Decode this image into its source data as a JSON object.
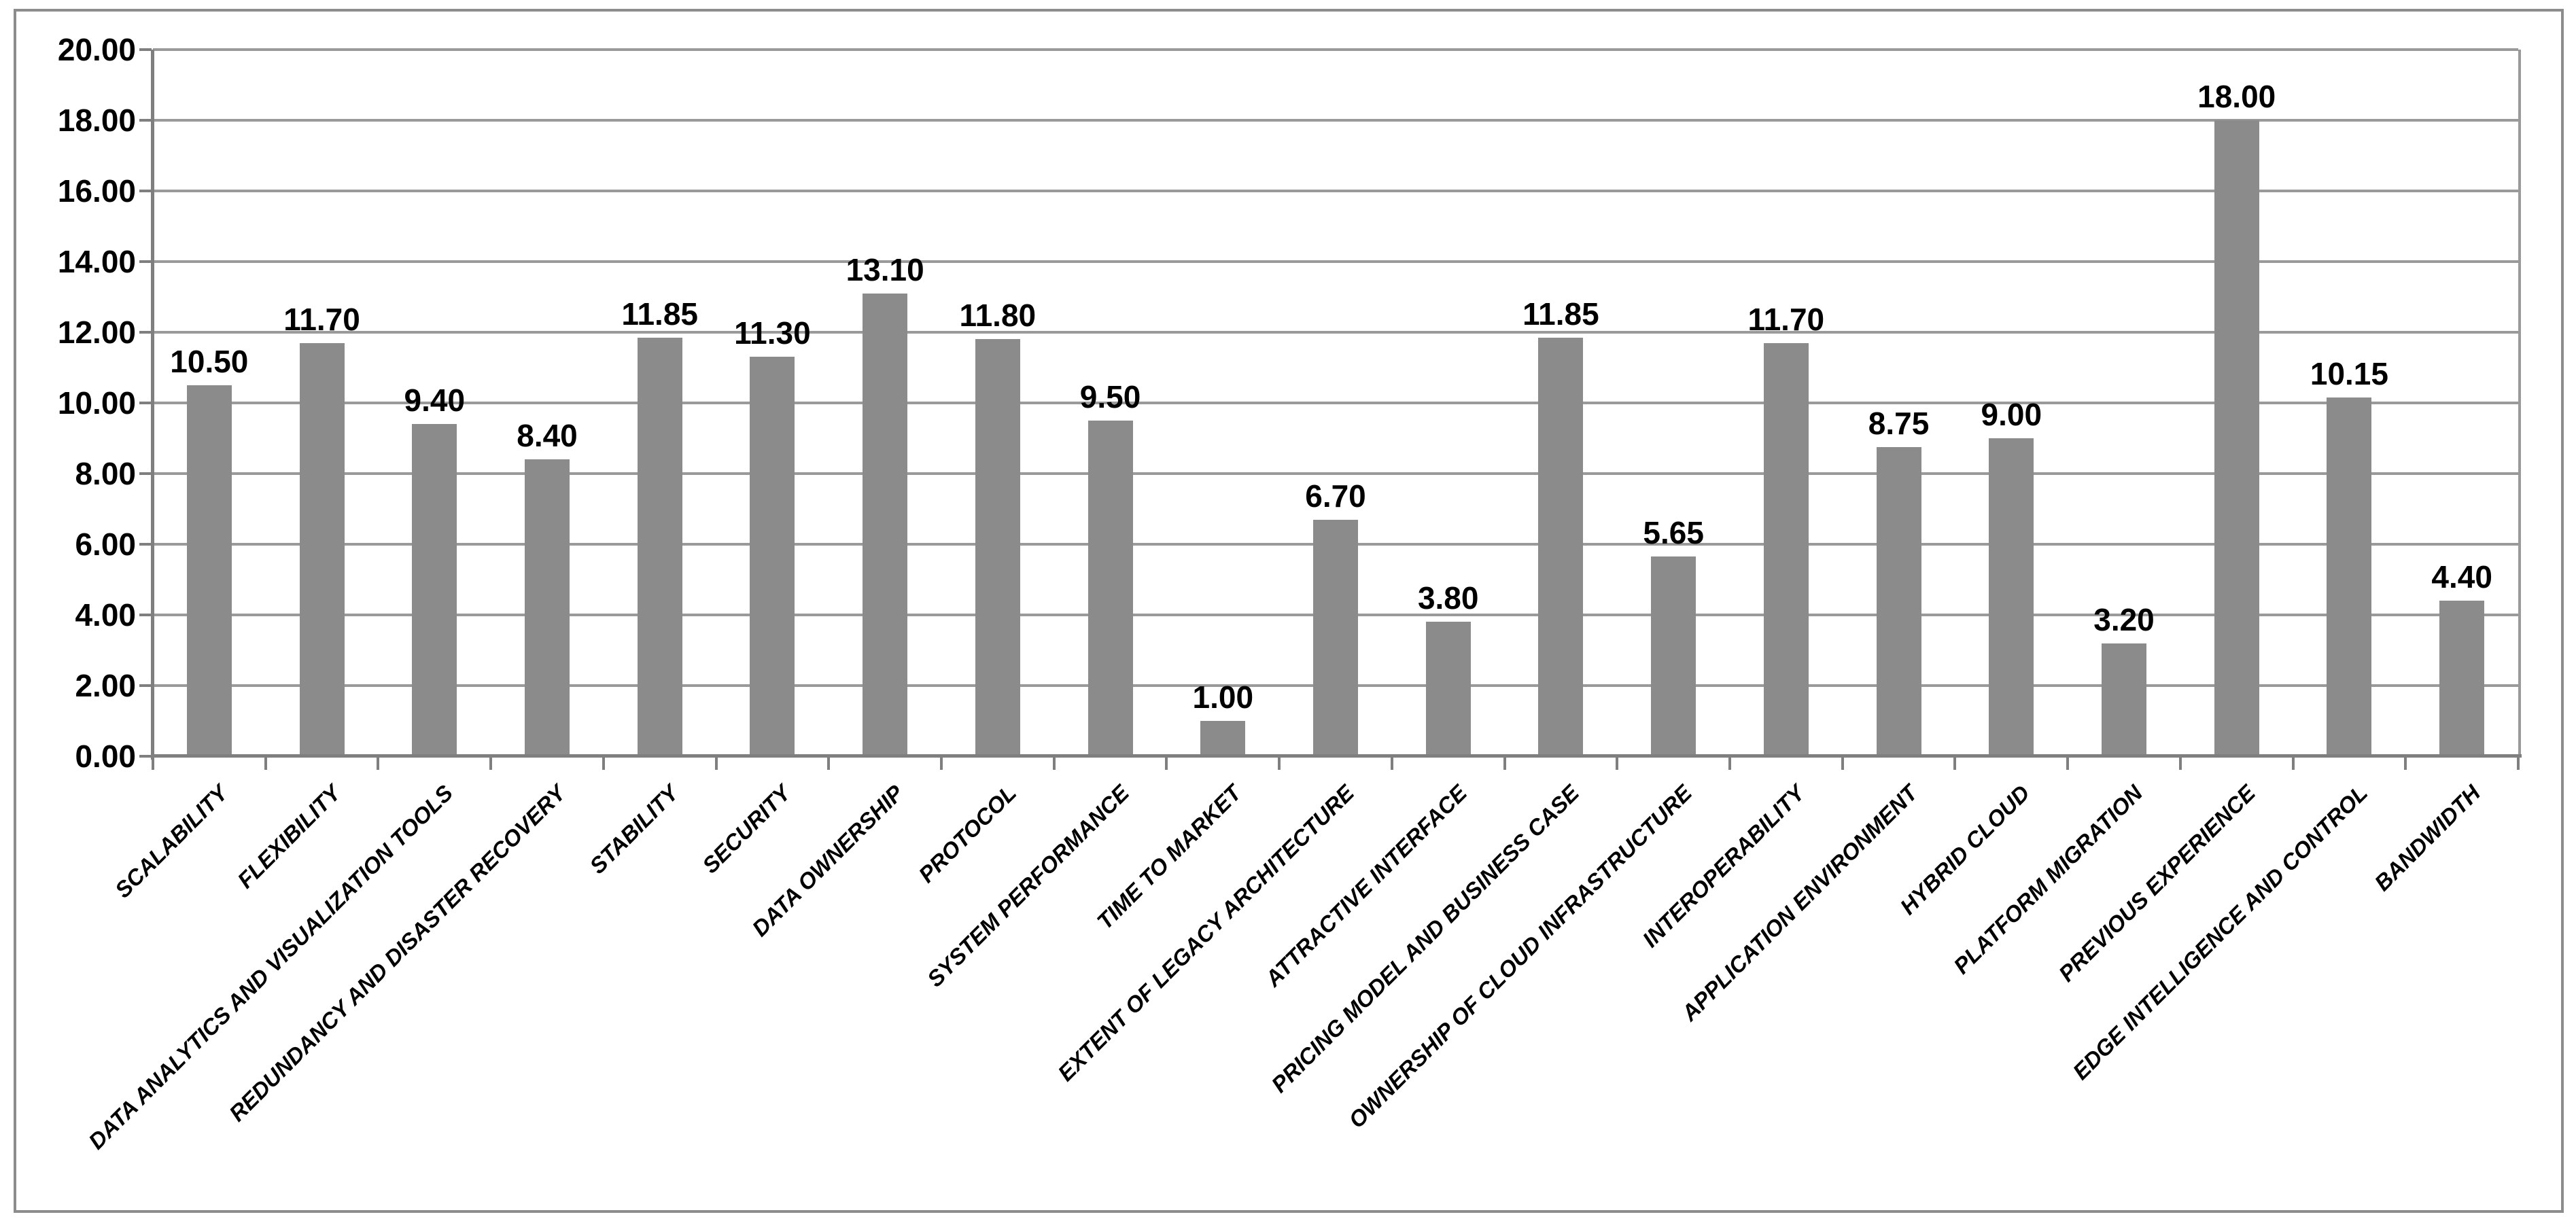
{
  "chart_data": {
    "type": "bar",
    "title": "",
    "xlabel": "",
    "ylabel": "",
    "categories": [
      "SCALABILITY",
      "FLEXIBILITY",
      "DATA ANALYTICS AND VISUALIZATION TOOLS",
      "REDUNDANCY AND DISASTER RECOVERY",
      "STABILITY",
      "SECURITY",
      "DATA OWNERSHIP",
      "PROTOCOL",
      "SYSTEM PERFORMANCE",
      "TIME TO MARKET",
      "EXTENT OF LEGACY ARCHITECTURE",
      "ATTRACTIVE INTERFACE",
      "PRICING MODEL AND BUSINESS CASE",
      "OWNERSHIP OF CLOUD INFRASTRUCTURE",
      "INTEROPERABILITY",
      "APPLICATION ENVIRONMENT",
      "HYBRID CLOUD",
      "PLATFORM MIGRATION",
      "PREVIOUS EXPERIENCE",
      "EDGE INTELLIGENCE AND CONTROL",
      "BANDWIDTH"
    ],
    "values": [
      10.5,
      11.7,
      9.4,
      8.4,
      11.85,
      11.3,
      13.1,
      11.8,
      9.5,
      1.0,
      6.7,
      3.8,
      11.85,
      5.65,
      11.7,
      8.75,
      9.0,
      3.2,
      18.0,
      10.15,
      4.4
    ],
    "value_labels": [
      "10.50",
      "11.70",
      "9.40",
      "8.40",
      "11.85",
      "11.30",
      "13.10",
      "11.80",
      "9.50",
      "1.00",
      "6.70",
      "3.80",
      "11.85",
      "5.65",
      "11.70",
      "8.75",
      "9.00",
      "3.20",
      "18.00",
      "10.15",
      "4.40"
    ],
    "y_tick_labels": [
      "20.00",
      "18.00",
      "16.00",
      "14.00",
      "12.00",
      "10.00",
      "8.00",
      "6.00",
      "4.00",
      "2.00",
      "0.00"
    ],
    "ylim": [
      0,
      20
    ],
    "y_tick_step": 2,
    "grid": "horizontal",
    "legend": "none",
    "bar_color": "#8b8b8b",
    "gridline_color": "#9a9a9a",
    "axis_color": "#7f7f7f",
    "text_color": "#000000",
    "background_color": "#ffffff"
  }
}
